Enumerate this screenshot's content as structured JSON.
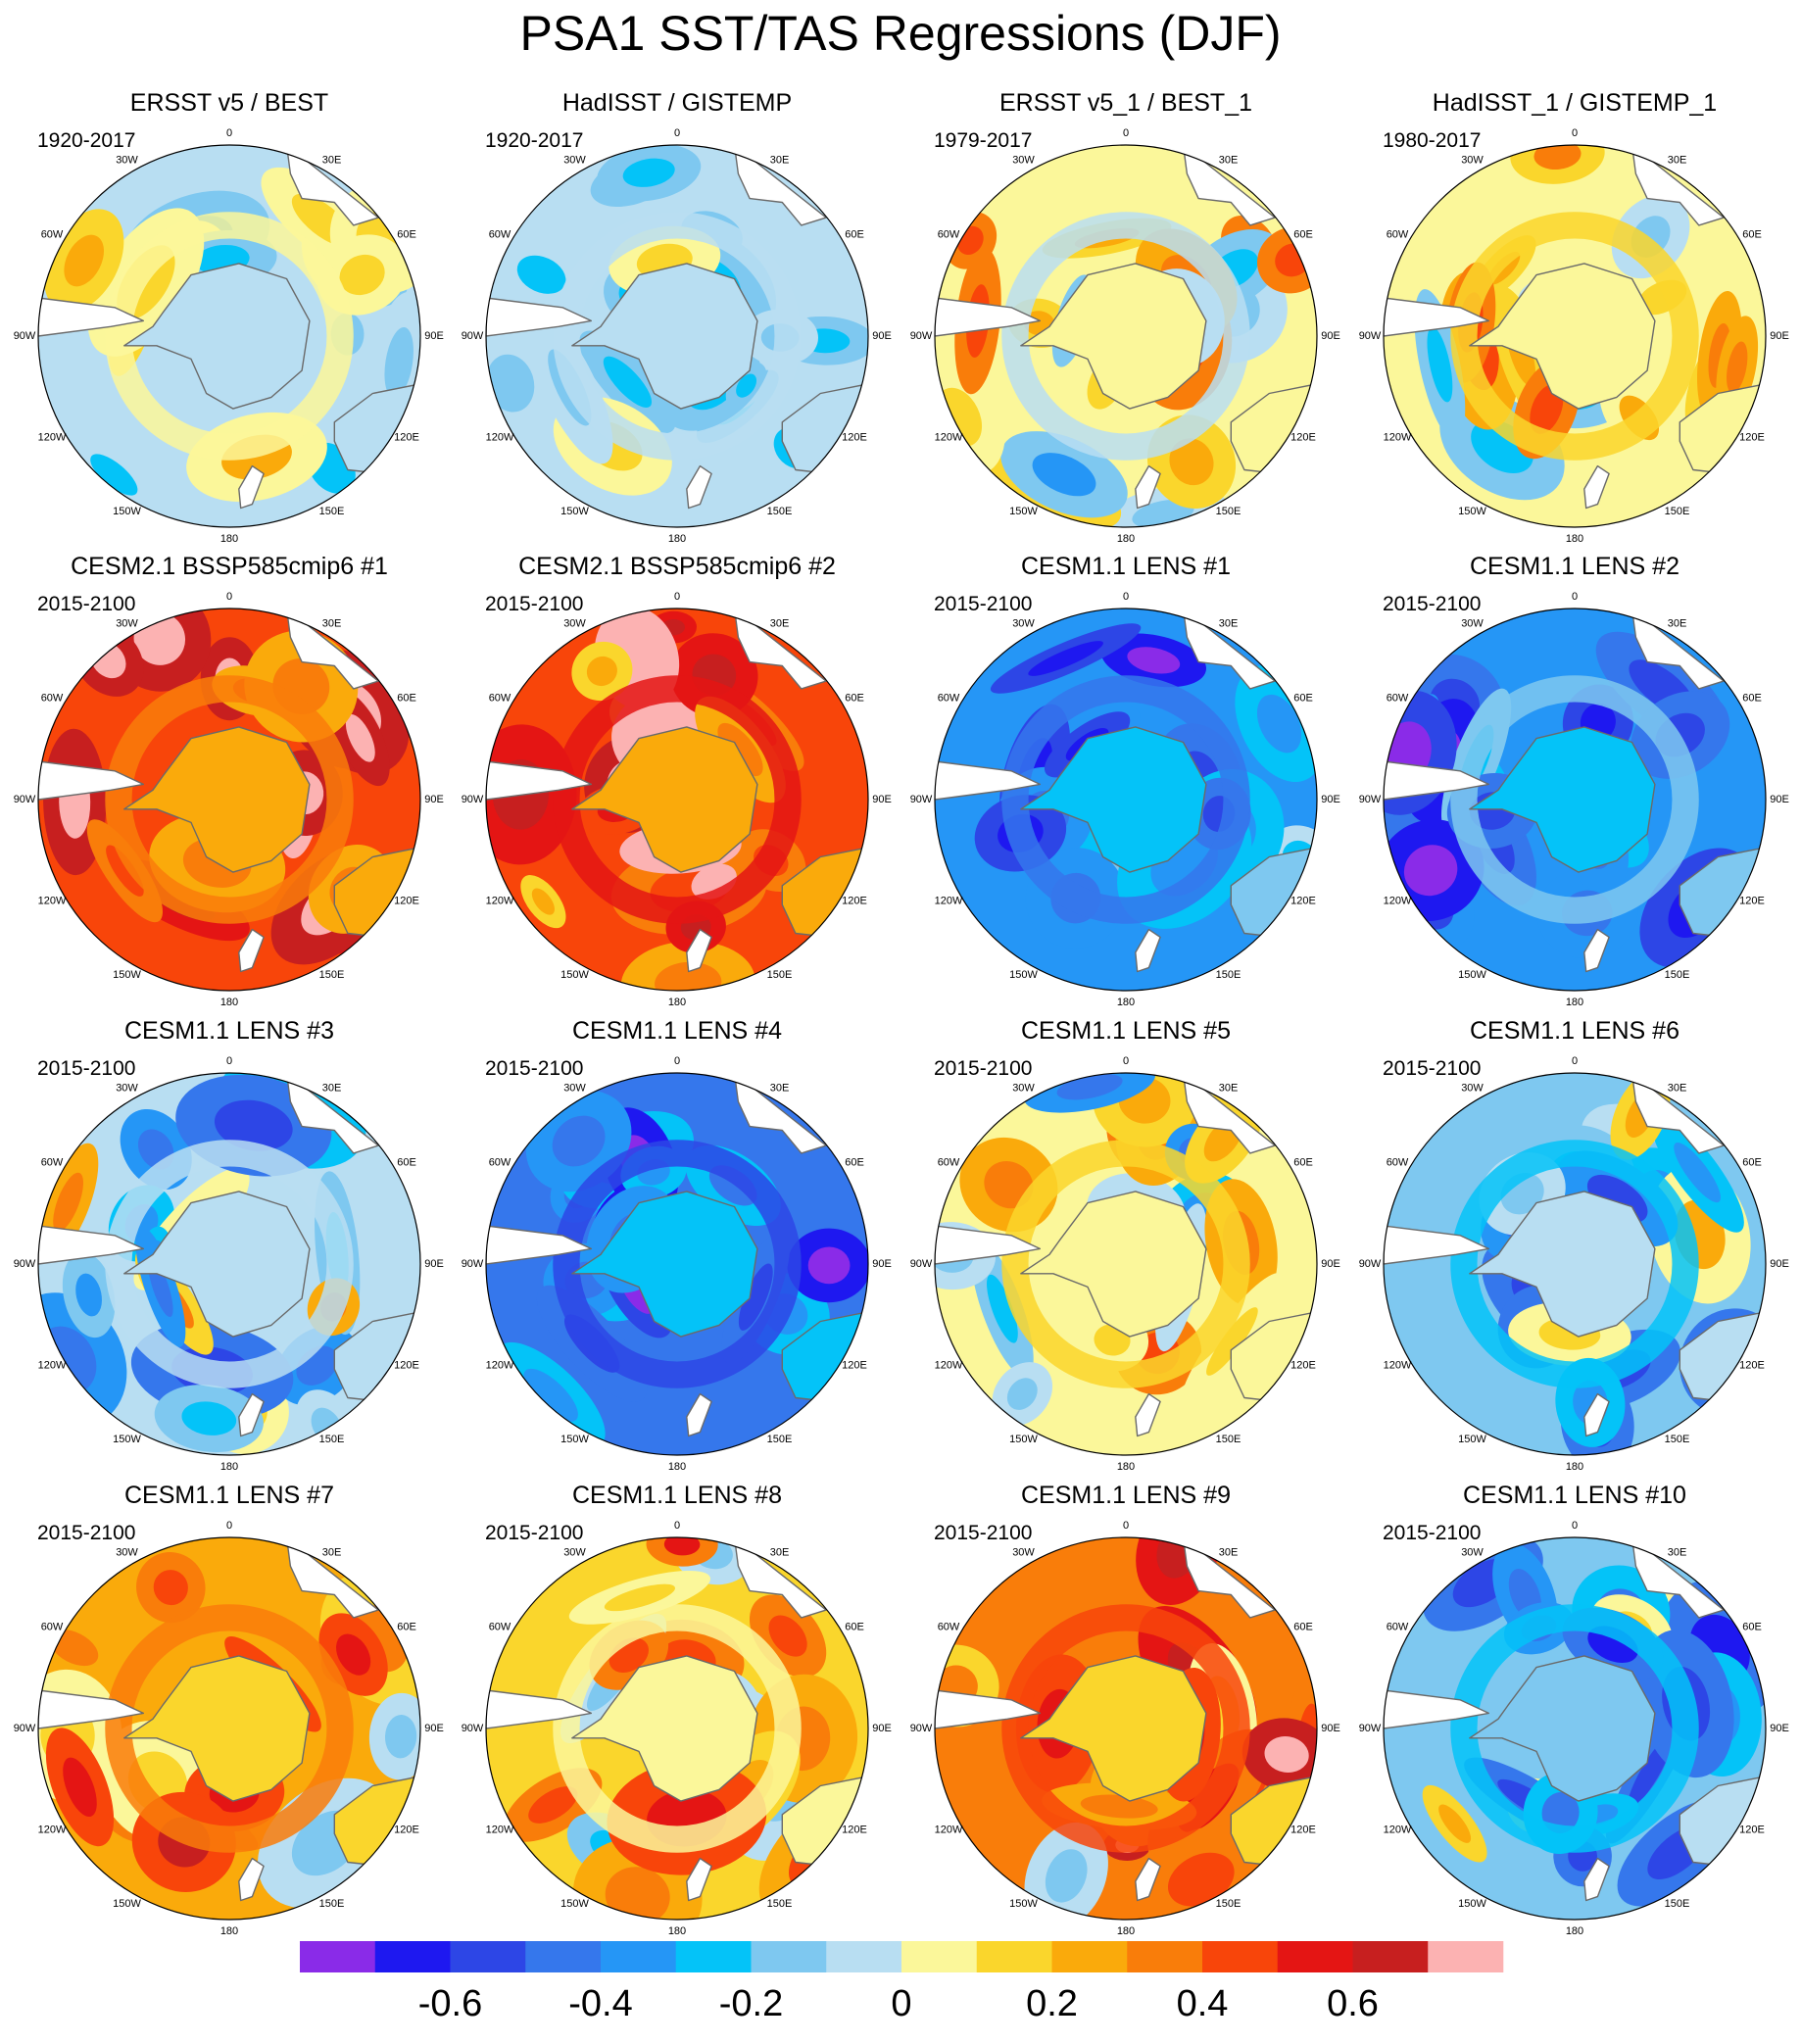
{
  "title": "PSA1 SST/TAS Regressions (DJF)",
  "colors": {
    "palette": [
      "#8a2be8",
      "#1e18f0",
      "#2d46e6",
      "#3577ec",
      "#2596f6",
      "#04c3f8",
      "#7ec8f0",
      "#b8def2",
      "#fbf79a",
      "#fad62c",
      "#faaa0b",
      "#f97d0a",
      "#f8450a",
      "#e41514",
      "#c71f1f",
      "#fcb2b2"
    ],
    "land": "#ffffff",
    "coast": "#6a6a6a"
  },
  "chart_data": {
    "type": "contour map panels (polar stereographic, Southern Hemisphere)",
    "variable": "SST/TAS regression on PSA1",
    "season": "DJF",
    "longitude_labels": [
      "0",
      "30E",
      "60E",
      "90E",
      "120E",
      "150E",
      "180",
      "150W",
      "120W",
      "90W",
      "60W",
      "30W"
    ],
    "colorbar": {
      "levels": [
        -0.7,
        -0.6,
        -0.5,
        -0.4,
        -0.3,
        -0.2,
        -0.1,
        0,
        0.1,
        0.2,
        0.3,
        0.4,
        0.5,
        0.6,
        0.7
      ],
      "tick_labels": [
        "-0.6",
        "-0.4",
        "-0.2",
        "0",
        "0.2",
        "0.4",
        "0.6"
      ],
      "tick_values": [
        -0.6,
        -0.4,
        -0.2,
        0,
        0.2,
        0.4,
        0.6
      ]
    },
    "panels": [
      {
        "title": "ERSST v5 / BEST",
        "period": "1920-2017",
        "bias": -0.03,
        "amp": 0.12,
        "seed": 1
      },
      {
        "title": "HadISST / GISTEMP",
        "period": "1920-2017",
        "bias": -0.06,
        "amp": 0.08,
        "seed": 2
      },
      {
        "title": "ERSST v5_1 / BEST_1",
        "period": "1979-2017",
        "bias": 0.07,
        "amp": 0.2,
        "seed": 3
      },
      {
        "title": "HadISST_1 / GISTEMP_1",
        "period": "1980-2017",
        "bias": 0.07,
        "amp": 0.16,
        "seed": 4
      },
      {
        "title": "CESM2.1 BSSP585cmip6 #1",
        "period": "2015-2100",
        "bias": 0.47,
        "amp": 0.2,
        "seed": 5
      },
      {
        "title": "CESM2.1 BSSP585cmip6 #2",
        "period": "2015-2100",
        "bias": 0.45,
        "amp": 0.22,
        "seed": 6
      },
      {
        "title": "CESM1.1 LENS #1",
        "period": "2015-2100",
        "bias": -0.37,
        "amp": 0.18,
        "seed": 7
      },
      {
        "title": "CESM1.1 LENS #2",
        "period": "2015-2100",
        "bias": -0.36,
        "amp": 0.2,
        "seed": 8
      },
      {
        "title": "CESM1.1 LENS #3",
        "period": "2015-2100",
        "bias": -0.07,
        "amp": 0.26,
        "seed": 9
      },
      {
        "title": "CESM1.1 LENS #4",
        "period": "2015-2100",
        "bias": -0.45,
        "amp": 0.16,
        "seed": 10
      },
      {
        "title": "CESM1.1 LENS #5",
        "period": "2015-2100",
        "bias": 0.06,
        "amp": 0.26,
        "seed": 11
      },
      {
        "title": "CESM1.1 LENS #6",
        "period": "2015-2100",
        "bias": -0.16,
        "amp": 0.2,
        "seed": 12
      },
      {
        "title": "CESM1.1 LENS #7",
        "period": "2015-2100",
        "bias": 0.25,
        "amp": 0.2,
        "seed": 13
      },
      {
        "title": "CESM1.1 LENS #8",
        "period": "2015-2100",
        "bias": 0.15,
        "amp": 0.2,
        "seed": 14
      },
      {
        "title": "CESM1.1 LENS #9",
        "period": "2015-2100",
        "bias": 0.33,
        "amp": 0.22,
        "seed": 15
      },
      {
        "title": "CESM1.1 LENS #10",
        "period": "2015-2100",
        "bias": -0.17,
        "amp": 0.24,
        "seed": 16
      }
    ]
  }
}
